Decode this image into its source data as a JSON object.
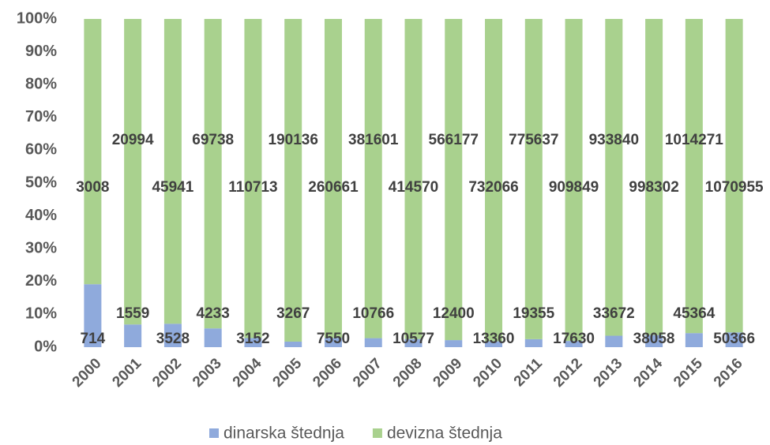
{
  "chart_data": {
    "type": "bar",
    "stacking": "percent",
    "categories": [
      "2000",
      "2001",
      "2002",
      "2003",
      "2004",
      "2005",
      "2006",
      "2007",
      "2008",
      "2009",
      "2010",
      "2011",
      "2012",
      "2013",
      "2014",
      "2015",
      "2016"
    ],
    "series": [
      {
        "name": "dinarska štednja",
        "color": "#8faadc",
        "values": [
          714,
          1559,
          3528,
          4233,
          3152,
          3267,
          7550,
          10766,
          10577,
          12400,
          13360,
          19355,
          17630,
          33672,
          38058,
          45364,
          50366
        ]
      },
      {
        "name": "devizna štednja",
        "color": "#a9d18e",
        "values": [
          3008,
          20994,
          45941,
          69738,
          110713,
          190136,
          260661,
          381601,
          414570,
          566177,
          732066,
          775637,
          909849,
          933840,
          998302,
          1014271,
          1070955
        ]
      }
    ],
    "ylim": [
      0,
      100
    ],
    "yticks": [
      {
        "value": 0,
        "label": "0%"
      },
      {
        "value": 10,
        "label": "10%"
      },
      {
        "value": 20,
        "label": "20%"
      },
      {
        "value": 30,
        "label": "30%"
      },
      {
        "value": 40,
        "label": "40%"
      },
      {
        "value": 50,
        "label": "50%"
      },
      {
        "value": 60,
        "label": "60%"
      },
      {
        "value": 70,
        "label": "70%"
      },
      {
        "value": 80,
        "label": "80%"
      },
      {
        "value": 90,
        "label": "90%"
      },
      {
        "value": 100,
        "label": "100%"
      }
    ],
    "grid": false,
    "legend": "bottom"
  }
}
